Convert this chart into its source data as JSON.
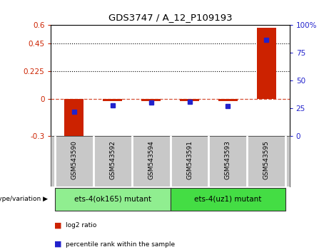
{
  "title": "GDS3747 / A_12_P109193",
  "samples": [
    "GSM543590",
    "GSM543592",
    "GSM543594",
    "GSM543591",
    "GSM543593",
    "GSM543595"
  ],
  "log2_ratio": [
    -0.335,
    -0.018,
    -0.018,
    -0.018,
    -0.015,
    0.58
  ],
  "percentile_rank": [
    22,
    28,
    30,
    31,
    27,
    87
  ],
  "left_ylim": [
    -0.3,
    0.6
  ],
  "right_ylim": [
    0,
    100
  ],
  "left_yticks": [
    -0.3,
    0,
    0.225,
    0.45,
    0.6
  ],
  "right_yticks": [
    0,
    25,
    50,
    75,
    100
  ],
  "left_ytick_labels": [
    "-0.3",
    "0",
    "0.225",
    "0.45",
    "0.6"
  ],
  "right_ytick_labels": [
    "0",
    "25",
    "50",
    "75",
    "100%"
  ],
  "hlines": [
    0.225,
    0.45
  ],
  "bar_color": "#cc2200",
  "dot_color": "#2222cc",
  "zero_line_color": "#cc2200",
  "group1_label": "ets-4(ok165) mutant",
  "group2_label": "ets-4(uz1) mutant",
  "group1_color": "#90ee90",
  "group2_color": "#44dd44",
  "tick_label_area_color": "#c8c8c8",
  "legend_log2": "log2 ratio",
  "legend_pct": "percentile rank within the sample",
  "dotted_line_color": "#000000",
  "bar_width": 0.5
}
